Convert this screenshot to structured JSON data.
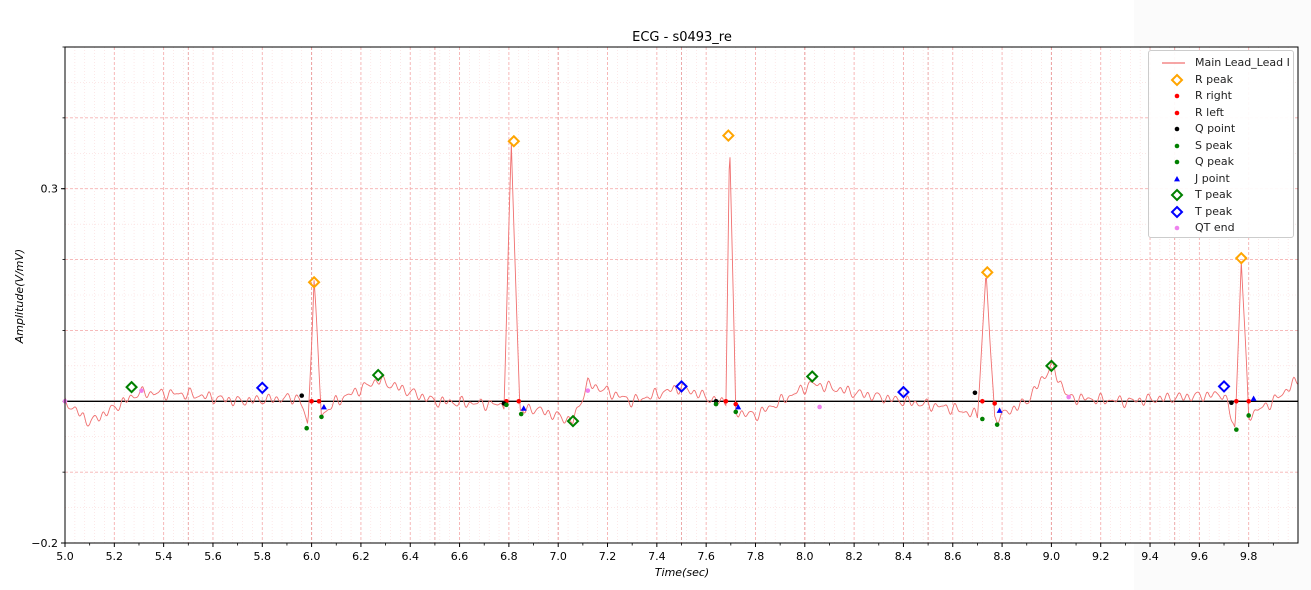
{
  "chart_data": {
    "type": "line",
    "title": "ECG - s0493_re",
    "xlabel": "Time(sec)",
    "ylabel": "Amplitude(V/mV)",
    "xlim": [
      5.0,
      10.0
    ],
    "ylim": [
      -0.2,
      0.5
    ],
    "x_ticks": [
      "5.0",
      "5.2",
      "5.4",
      "5.6",
      "5.8",
      "6.0",
      "6.2",
      "6.4",
      "6.6",
      "6.8",
      "7.0",
      "7.2",
      "7.4",
      "7.6",
      "7.8",
      "8.0",
      "8.2",
      "8.4",
      "8.6",
      "8.8",
      "9.0",
      "9.2",
      "9.4",
      "9.6",
      "9.8"
    ],
    "y_ticks": [
      "−0.2",
      "0.3"
    ],
    "baseline": 0.0,
    "grid": true,
    "legend_position": "top-right",
    "colors": {
      "signal": "#f07070",
      "r_peak": "#ffa500",
      "r_right": "#ff0000",
      "r_left": "#ff0000",
      "q_point": "#000000",
      "s_peak": "#008000",
      "q_peak": "#008000",
      "j_point": "#0000ff",
      "t_peak_green": "#008000",
      "t_peak_blue": "#0000ff",
      "qt_end": "#ee82ee"
    },
    "series": [
      {
        "name": "Main Lead_Lead I",
        "marker": "line",
        "color": "#f07070",
        "keypoints": [
          [
            5.0,
            0.0
          ],
          [
            5.1,
            -0.03
          ],
          [
            5.3,
            0.012
          ],
          [
            5.5,
            0.01
          ],
          [
            5.7,
            0.0
          ],
          [
            5.95,
            0.005
          ],
          [
            5.985,
            -0.035
          ],
          [
            6.01,
            0.17
          ],
          [
            6.04,
            -0.02
          ],
          [
            6.1,
            0.0
          ],
          [
            6.27,
            0.03
          ],
          [
            6.5,
            0.0
          ],
          [
            6.78,
            -0.005
          ],
          [
            6.81,
            0.36
          ],
          [
            6.845,
            -0.015
          ],
          [
            6.9,
            -0.01
          ],
          [
            7.06,
            -0.028
          ],
          [
            7.12,
            0.025
          ],
          [
            7.3,
            0.0
          ],
          [
            7.5,
            0.02
          ],
          [
            7.64,
            0.0
          ],
          [
            7.68,
            0.0
          ],
          [
            7.695,
            0.37
          ],
          [
            7.72,
            -0.015
          ],
          [
            7.8,
            -0.02
          ],
          [
            8.03,
            0.025
          ],
          [
            8.2,
            0.012
          ],
          [
            8.4,
            0.0
          ],
          [
            8.6,
            -0.01
          ],
          [
            8.7,
            -0.02
          ],
          [
            8.735,
            0.18
          ],
          [
            8.77,
            -0.025
          ],
          [
            8.9,
            0.0
          ],
          [
            9.0,
            0.05
          ],
          [
            9.07,
            0.005
          ],
          [
            9.3,
            0.0
          ],
          [
            9.7,
            0.01
          ],
          [
            9.745,
            -0.04
          ],
          [
            9.77,
            0.2
          ],
          [
            9.8,
            -0.02
          ],
          [
            9.9,
            0.0
          ],
          [
            10.0,
            0.03
          ]
        ]
      },
      {
        "name": "R peak",
        "marker": "diamond",
        "color": "#ffa500",
        "points": [
          [
            6.01,
            0.168
          ],
          [
            6.82,
            0.367
          ],
          [
            7.69,
            0.375
          ],
          [
            8.74,
            0.182
          ],
          [
            9.77,
            0.202
          ]
        ]
      },
      {
        "name": "R right",
        "marker": "dot",
        "color": "#ff0000",
        "points": [
          [
            6.03,
            0.0
          ],
          [
            6.84,
            0.0
          ],
          [
            7.72,
            -0.004
          ],
          [
            8.77,
            -0.003
          ],
          [
            9.8,
            0.0
          ]
        ]
      },
      {
        "name": "R left",
        "marker": "dot",
        "color": "#ff0000",
        "points": [
          [
            6.0,
            0.0
          ],
          [
            6.79,
            0.0
          ],
          [
            7.68,
            0.0
          ],
          [
            8.72,
            0.0
          ],
          [
            9.75,
            0.0
          ]
        ]
      },
      {
        "name": "Q point",
        "marker": "dot",
        "color": "#000000",
        "points": [
          [
            5.96,
            0.008
          ],
          [
            6.78,
            -0.003
          ],
          [
            7.64,
            0.0
          ],
          [
            8.69,
            0.012
          ],
          [
            9.73,
            -0.002
          ]
        ]
      },
      {
        "name": "S peak",
        "marker": "dot",
        "color": "#008000",
        "points": [
          [
            6.04,
            -0.022
          ],
          [
            6.85,
            -0.018
          ],
          [
            7.72,
            -0.015
          ],
          [
            8.78,
            -0.033
          ],
          [
            9.8,
            -0.02
          ]
        ]
      },
      {
        "name": "Q peak",
        "marker": "dot",
        "color": "#008000",
        "points": [
          [
            5.98,
            -0.038
          ],
          [
            6.79,
            -0.005
          ],
          [
            7.64,
            -0.004
          ],
          [
            8.72,
            -0.025
          ],
          [
            9.75,
            -0.04
          ]
        ]
      },
      {
        "name": "J point",
        "marker": "triangle",
        "color": "#0000ff",
        "points": [
          [
            6.05,
            -0.008
          ],
          [
            6.86,
            -0.01
          ],
          [
            7.73,
            -0.008
          ],
          [
            8.79,
            -0.013
          ],
          [
            9.82,
            0.004
          ]
        ]
      },
      {
        "name": "T peak",
        "marker": "diamond",
        "color": "#008000",
        "points": [
          [
            5.27,
            0.02
          ],
          [
            6.27,
            0.037
          ],
          [
            7.06,
            -0.028
          ],
          [
            8.03,
            0.035
          ],
          [
            9.0,
            0.05
          ]
        ]
      },
      {
        "name": "T peak",
        "marker": "diamond",
        "color": "#0000ff",
        "points": [
          [
            5.8,
            0.019
          ],
          [
            7.5,
            0.021
          ],
          [
            8.4,
            0.013
          ],
          [
            9.7,
            0.021
          ]
        ]
      },
      {
        "name": "QT end",
        "marker": "dot",
        "color": "#ee82ee",
        "points": [
          [
            5.0,
            0.0
          ],
          [
            5.31,
            0.015
          ],
          [
            7.12,
            0.015
          ],
          [
            8.06,
            -0.008
          ],
          [
            9.07,
            0.006
          ]
        ]
      }
    ]
  }
}
